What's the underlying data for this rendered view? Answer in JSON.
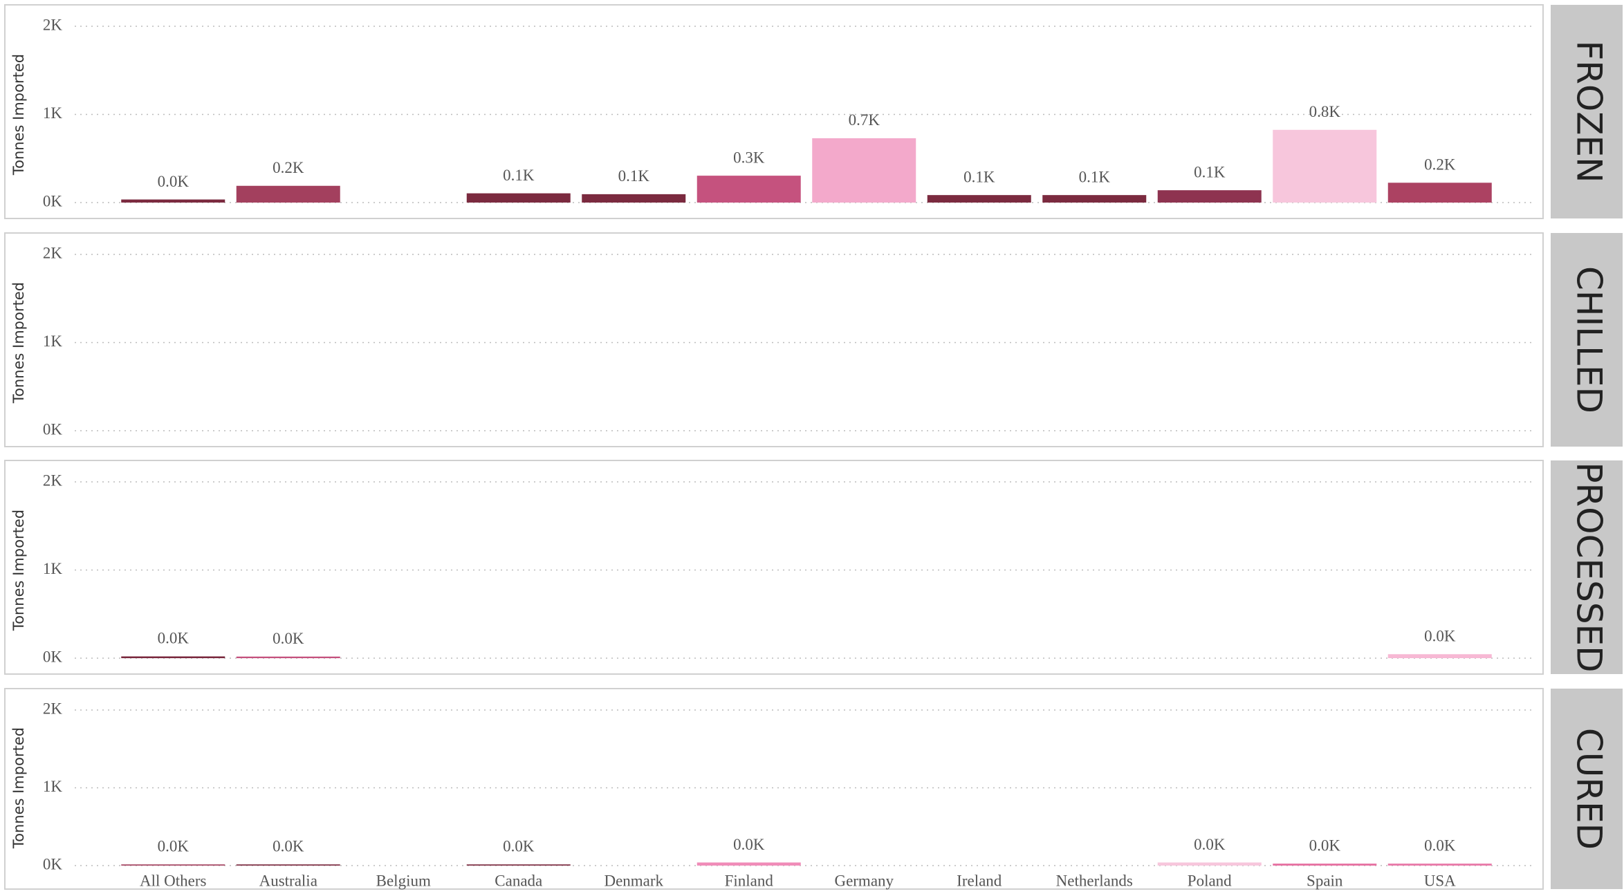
{
  "chart_data": {
    "type": "bar",
    "categories": [
      "All Others",
      "Australia",
      "Belgium",
      "Canada",
      "Denmark",
      "Finland",
      "Germany",
      "Ireland",
      "Netherlands",
      "Poland",
      "Spain",
      "USA"
    ],
    "ylabel": "Tonnes Imported",
    "ylim": [
      0,
      2000
    ],
    "yticks": [
      {
        "value": 0,
        "label": "0K"
      },
      {
        "value": 1000,
        "label": "1K"
      },
      {
        "value": 2000,
        "label": "2K"
      }
    ],
    "grid": true,
    "panels": [
      {
        "title": "FROZEN",
        "values": [
          35,
          190,
          null,
          105,
          95,
          305,
          730,
          85,
          85,
          140,
          825,
          225
        ],
        "value_labels": [
          "0.0K",
          "0.2K",
          null,
          "0.1K",
          "0.1K",
          "0.3K",
          "0.7K",
          "0.1K",
          "0.1K",
          "0.1K",
          "0.8K",
          "0.2K"
        ],
        "colors": [
          "#7b2a3f",
          "#a3405e",
          null,
          "#7b2a3f",
          "#7b2a3f",
          "#c5527e",
          "#f3a9cb",
          "#7b2a3f",
          "#7b2a3f",
          "#8e3350",
          "#f7c6dc",
          "#ac4262"
        ]
      },
      {
        "title": "CHILLED",
        "values": [
          null,
          null,
          null,
          null,
          null,
          null,
          null,
          null,
          null,
          null,
          null,
          null
        ],
        "value_labels": [
          null,
          null,
          null,
          null,
          null,
          null,
          null,
          null,
          null,
          null,
          null,
          null
        ],
        "colors": [
          null,
          null,
          null,
          null,
          null,
          null,
          null,
          null,
          null,
          null,
          null,
          null
        ]
      },
      {
        "title": "PROCESSED",
        "values": [
          20,
          18,
          null,
          null,
          null,
          null,
          null,
          null,
          null,
          null,
          null,
          45
        ],
        "value_labels": [
          "0.0K",
          "0.0K",
          null,
          null,
          null,
          null,
          null,
          null,
          null,
          null,
          null,
          "0.0K"
        ],
        "colors": [
          "#7b2a3f",
          "#c5527e",
          null,
          null,
          null,
          null,
          null,
          null,
          null,
          null,
          null,
          "#f7b8d4"
        ]
      },
      {
        "title": "CURED",
        "values": [
          15,
          15,
          null,
          15,
          null,
          40,
          null,
          null,
          null,
          40,
          25,
          25
        ],
        "value_labels": [
          "0.0K",
          "0.0K",
          null,
          "0.0K",
          null,
          "0.0K",
          null,
          null,
          null,
          "0.0K",
          "0.0K",
          "0.0K"
        ],
        "colors": [
          "#a3405e",
          "#7b2a3f",
          null,
          "#7b2a3f",
          null,
          "#f08cb8",
          null,
          null,
          null,
          "#f7c6dc",
          "#e66fa0",
          "#e878a8"
        ]
      }
    ]
  }
}
